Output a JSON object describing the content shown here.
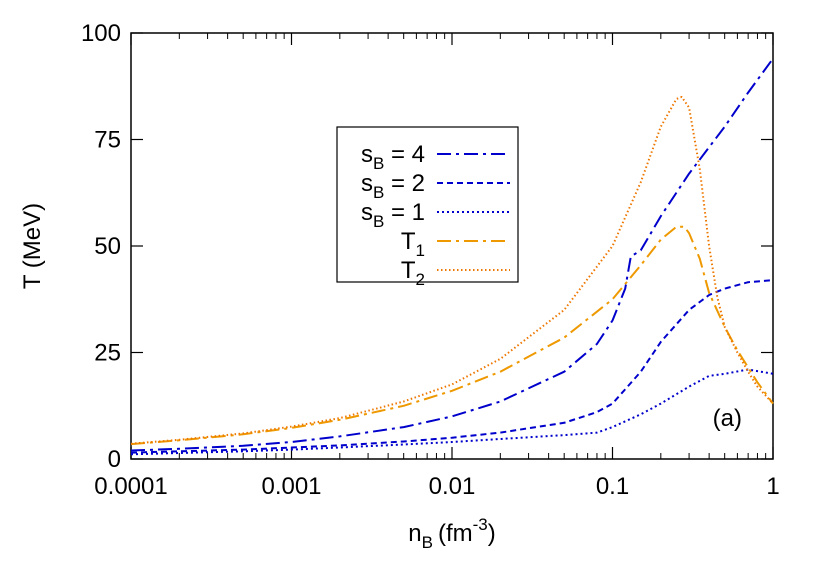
{
  "chart_data": {
    "type": "line",
    "xlabel": "n",
    "xlabel_sub": "B",
    "xlabel_unit": "(fm",
    "xlabel_unit_sup": "-3",
    "xlabel_unit_close": ")",
    "ylabel": "T (MeV)",
    "xscale": "log",
    "xlim": [
      0.0001,
      1
    ],
    "ylim": [
      0,
      100
    ],
    "xticks": [
      {
        "value": 0.0001,
        "label": "0.0001"
      },
      {
        "value": 0.001,
        "label": "0.001"
      },
      {
        "value": 0.01,
        "label": "0.01"
      },
      {
        "value": 0.1,
        "label": "0.1"
      },
      {
        "value": 1,
        "label": "1"
      }
    ],
    "yticks": [
      {
        "value": 0,
        "label": "0"
      },
      {
        "value": 25,
        "label": "25"
      },
      {
        "value": 50,
        "label": "50"
      },
      {
        "value": 75,
        "label": "75"
      },
      {
        "value": 100,
        "label": "100"
      }
    ],
    "grid": false,
    "legend_placement": "center-left",
    "annotation": "(a)",
    "series": [
      {
        "name": "s",
        "name_sub": "B",
        "name_suffix": " = 4",
        "color": "#0000cc",
        "dash": "14,5,3,5",
        "width": 2,
        "points": [
          [
            0.0001,
            2.0
          ],
          [
            0.0002,
            2.4
          ],
          [
            0.0005,
            3.1
          ],
          [
            0.001,
            4.0
          ],
          [
            0.002,
            5.3
          ],
          [
            0.005,
            7.5
          ],
          [
            0.01,
            10.0
          ],
          [
            0.02,
            13.5
          ],
          [
            0.05,
            20.5
          ],
          [
            0.08,
            27.0
          ],
          [
            0.1,
            32.5
          ],
          [
            0.12,
            40.0
          ],
          [
            0.13,
            47.5
          ],
          [
            0.15,
            49.0
          ],
          [
            0.2,
            57.0
          ],
          [
            0.3,
            67.0
          ],
          [
            0.5,
            78.0
          ],
          [
            0.7,
            86.0
          ],
          [
            1.0,
            94.0
          ]
        ]
      },
      {
        "name": "s",
        "name_sub": "B",
        "name_suffix": " = 2",
        "color": "#0000cc",
        "dash": "6,4",
        "width": 2,
        "points": [
          [
            0.0001,
            1.5
          ],
          [
            0.0002,
            1.8
          ],
          [
            0.0005,
            2.2
          ],
          [
            0.001,
            2.7
          ],
          [
            0.002,
            3.2
          ],
          [
            0.005,
            4.1
          ],
          [
            0.01,
            5.0
          ],
          [
            0.02,
            6.2
          ],
          [
            0.05,
            8.5
          ],
          [
            0.08,
            11.0
          ],
          [
            0.1,
            13.0
          ],
          [
            0.15,
            20.5
          ],
          [
            0.2,
            27.5
          ],
          [
            0.3,
            35.0
          ],
          [
            0.4,
            38.5
          ],
          [
            0.5,
            40.0
          ],
          [
            0.7,
            41.5
          ],
          [
            1.0,
            42.0
          ]
        ]
      },
      {
        "name": "s",
        "name_sub": "B",
        "name_suffix": " = 1",
        "color": "#0000cc",
        "dash": "2,3",
        "width": 2,
        "points": [
          [
            0.0001,
            1.1
          ],
          [
            0.0002,
            1.4
          ],
          [
            0.0005,
            1.8
          ],
          [
            0.001,
            2.2
          ],
          [
            0.002,
            2.7
          ],
          [
            0.005,
            3.4
          ],
          [
            0.01,
            4.0
          ],
          [
            0.02,
            4.7
          ],
          [
            0.05,
            5.6
          ],
          [
            0.08,
            6.2
          ],
          [
            0.1,
            7.5
          ],
          [
            0.15,
            10.5
          ],
          [
            0.2,
            13.0
          ],
          [
            0.3,
            17.0
          ],
          [
            0.4,
            19.5
          ],
          [
            0.5,
            20.0
          ],
          [
            0.7,
            21.0
          ],
          [
            1.0,
            20.0
          ]
        ]
      },
      {
        "name": "T",
        "name_sub": "1",
        "name_suffix": "",
        "color": "#ee9900",
        "dash": "14,5,3,5",
        "width": 2,
        "points": [
          [
            0.0001,
            3.5
          ],
          [
            0.0002,
            4.4
          ],
          [
            0.0005,
            5.8
          ],
          [
            0.001,
            7.3
          ],
          [
            0.002,
            9.2
          ],
          [
            0.005,
            12.5
          ],
          [
            0.01,
            16.0
          ],
          [
            0.02,
            20.5
          ],
          [
            0.05,
            28.5
          ],
          [
            0.1,
            37.5
          ],
          [
            0.15,
            45.5
          ],
          [
            0.2,
            51.5
          ],
          [
            0.25,
            54.5
          ],
          [
            0.28,
            54.5
          ],
          [
            0.3,
            53.0
          ],
          [
            0.35,
            47.0
          ],
          [
            0.4,
            39.0
          ],
          [
            0.5,
            31.0
          ],
          [
            0.6,
            25.5
          ],
          [
            0.7,
            21.5
          ],
          [
            0.8,
            18.0
          ],
          [
            1.0,
            13.0
          ]
        ]
      },
      {
        "name": "T",
        "name_sub": "2",
        "name_suffix": "",
        "color": "#ee7700",
        "dash": "1.5,2.5",
        "width": 2,
        "points": [
          [
            0.0001,
            3.6
          ],
          [
            0.0002,
            4.5
          ],
          [
            0.0005,
            6.0
          ],
          [
            0.001,
            7.6
          ],
          [
            0.002,
            9.6
          ],
          [
            0.005,
            13.5
          ],
          [
            0.01,
            17.5
          ],
          [
            0.02,
            23.5
          ],
          [
            0.05,
            35.0
          ],
          [
            0.1,
            50.0
          ],
          [
            0.15,
            65.0
          ],
          [
            0.2,
            78.0
          ],
          [
            0.25,
            84.5
          ],
          [
            0.27,
            85.0
          ],
          [
            0.3,
            82.5
          ],
          [
            0.35,
            68.0
          ],
          [
            0.4,
            50.0
          ],
          [
            0.45,
            38.0
          ],
          [
            0.5,
            31.0
          ],
          [
            0.6,
            25.0
          ],
          [
            0.7,
            20.5
          ],
          [
            0.8,
            17.0
          ],
          [
            1.0,
            13.0
          ]
        ]
      }
    ]
  }
}
